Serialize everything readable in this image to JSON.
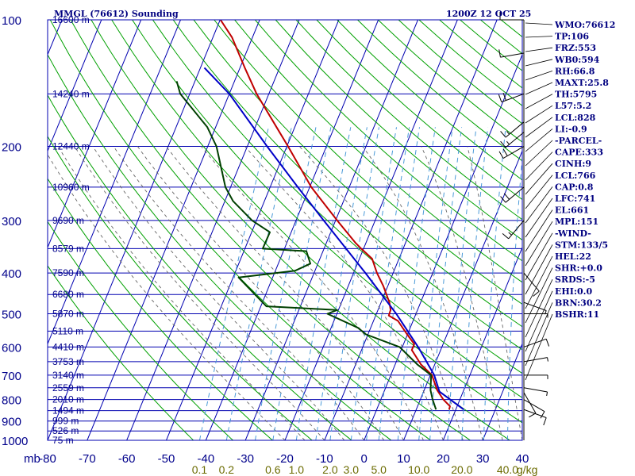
{
  "header": {
    "station": "MMGL (76612) Sounding",
    "time": "1200Z 12 OCT 25"
  },
  "colors": {
    "isobar": "#0000b0",
    "isotherm": "#0000b0",
    "dry_adiabat": "#00a000",
    "moist_adiabat": "#666666",
    "mixing_ratio": "#4a9ad8",
    "temperature": "#c00000",
    "dewpoint": "#004000",
    "parcel": "#0000c8",
    "wind": "#000000"
  },
  "axes": {
    "pressure_unit": "mb",
    "mixing_ratio_unit": "g/kg",
    "pressure_ticks": [
      "100",
      "200",
      "300",
      "400",
      "500",
      "600",
      "700",
      "800",
      "900",
      "1000"
    ],
    "temperature_ticks": [
      "-80",
      "-70",
      "-60",
      "-50",
      "-40",
      "-30",
      "-20",
      "-10",
      "0",
      "10",
      "20",
      "30",
      "40"
    ],
    "height_labels": [
      "16600 m",
      "14240 m",
      "12440 m",
      "10960 m",
      "9690 m",
      "8579 m",
      "7590 m",
      "6680 m",
      "5870 m",
      "5110 m",
      "4410 m",
      "3753 m",
      "3140 m",
      "2559 m",
      "2010 m",
      "1494 m",
      "999 m",
      "526 m",
      "75 m"
    ],
    "mixing_ratio_labels": [
      "0.1",
      "0.2",
      "0.6",
      "1.0",
      "2.0",
      "3.0",
      "5.0",
      "10.0",
      "20.0",
      "40.0"
    ]
  },
  "indices": [
    "WMO:76612",
    "TP:106",
    "FRZ:553",
    "WB0:594",
    "RH:66.8",
    "MAXT:25.8",
    "TH:5795",
    "L57:5.2",
    "LCL:828",
    "LI:-0.9",
    "-PARCEL-",
    "CAPE:333",
    "CINH:9",
    "LCL:766",
    "CAP:0.8",
    "LFC:741",
    "EL:661",
    "MPL:151",
    "-WIND-",
    "STM:133/5",
    "HEL:22",
    "SHR:+0.0",
    "SRDS:-5",
    "EHI:0.0",
    "BRN:30.2",
    "BSHR:11"
  ],
  "chart_data": {
    "type": "line",
    "title": "MMGL (76612) Sounding",
    "subtitle": "1200Z 12 OCT 25",
    "xlabel": "",
    "ylabel": "mb",
    "ylim": [
      1000,
      100
    ],
    "xlim": [
      -80,
      40
    ],
    "y_scale": "log",
    "series": [
      {
        "key": "temperature",
        "points": [
          {
            "p": 845,
            "t": 18.3
          },
          {
            "p": 830,
            "t": 18.2
          },
          {
            "p": 800,
            "t": 15.8
          },
          {
            "p": 760,
            "t": 13.3
          },
          {
            "p": 700,
            "t": 10.4
          },
          {
            "p": 660,
            "t": 6.5
          },
          {
            "p": 610,
            "t": 2.7
          },
          {
            "p": 590,
            "t": 2.7
          },
          {
            "p": 560,
            "t": -0.1
          },
          {
            "p": 520,
            "t": -3.8
          },
          {
            "p": 505,
            "t": -6.7
          },
          {
            "p": 490,
            "t": -6.8
          },
          {
            "p": 470,
            "t": -7.9
          },
          {
            "p": 430,
            "t": -11.1
          },
          {
            "p": 400,
            "t": -14.1
          },
          {
            "p": 370,
            "t": -16.8
          },
          {
            "p": 350,
            "t": -20.6
          },
          {
            "p": 340,
            "t": -22.5
          },
          {
            "p": 300,
            "t": -29.6
          },
          {
            "p": 250,
            "t": -39.6
          },
          {
            "p": 200,
            "t": -49.7
          },
          {
            "p": 180,
            "t": -54.6
          },
          {
            "p": 150,
            "t": -63.1
          },
          {
            "p": 130,
            "t": -68.8
          },
          {
            "p": 110,
            "t": -75.2
          },
          {
            "p": 100,
            "t": -79.9
          }
        ]
      },
      {
        "key": "dewpoint",
        "points": [
          {
            "p": 845,
            "t": 15.0
          },
          {
            "p": 800,
            "t": 13.1
          },
          {
            "p": 760,
            "t": 11.6
          },
          {
            "p": 700,
            "t": 10.2
          },
          {
            "p": 660,
            "t": 5.6
          },
          {
            "p": 600,
            "t": -0.7
          },
          {
            "p": 560,
            "t": -10.5
          },
          {
            "p": 540,
            "t": -13.2
          },
          {
            "p": 500,
            "t": -22.4
          },
          {
            "p": 490,
            "t": -20.3
          },
          {
            "p": 480,
            "t": -38.6
          },
          {
            "p": 410,
            "t": -48.6
          },
          {
            "p": 395,
            "t": -35.0
          },
          {
            "p": 380,
            "t": -31.9
          },
          {
            "p": 355,
            "t": -34.2
          },
          {
            "p": 350,
            "t": -45.5
          },
          {
            "p": 320,
            "t": -45.4
          },
          {
            "p": 300,
            "t": -51.1
          },
          {
            "p": 270,
            "t": -57.9
          },
          {
            "p": 250,
            "t": -61.3
          },
          {
            "p": 200,
            "t": -67.8
          },
          {
            "p": 180,
            "t": -72.1
          },
          {
            "p": 150,
            "t": -82.4
          },
          {
            "p": 140,
            "t": -84.6
          }
        ]
      },
      {
        "key": "parcel",
        "points": [
          {
            "p": 845,
            "t": 22.0
          },
          {
            "p": 766,
            "t": 14.0
          },
          {
            "p": 700,
            "t": 11.0
          },
          {
            "p": 600,
            "t": 4.0
          },
          {
            "p": 500,
            "t": -5.0
          },
          {
            "p": 400,
            "t": -17.0
          },
          {
            "p": 300,
            "t": -33.0
          },
          {
            "p": 250,
            "t": -43.0
          },
          {
            "p": 200,
            "t": -55.0
          },
          {
            "p": 150,
            "t": -70.0
          },
          {
            "p": 130,
            "t": -79.0
          }
        ]
      }
    ],
    "wind_barbs": [
      {
        "p": 845,
        "dir": 110,
        "kt": 10
      },
      {
        "p": 800,
        "dir": 120,
        "kt": 10
      },
      {
        "p": 770,
        "dir": 150,
        "kt": 10
      },
      {
        "p": 750,
        "dir": 100,
        "kt": 5
      },
      {
        "p": 700,
        "dir": 90,
        "kt": 5
      },
      {
        "p": 650,
        "dir": 80,
        "kt": 5
      },
      {
        "p": 600,
        "dir": 70,
        "kt": 10
      },
      {
        "p": 500,
        "dir": 90,
        "kt": 5
      },
      {
        "p": 470,
        "dir": 110,
        "kt": 5
      },
      {
        "p": 400,
        "dir": 140,
        "kt": 10
      },
      {
        "p": 300,
        "dir": 220,
        "kt": 15
      },
      {
        "p": 250,
        "dir": 230,
        "kt": 20
      },
      {
        "p": 200,
        "dir": 240,
        "kt": 20
      },
      {
        "p": 185,
        "dir": 230,
        "kt": 15
      },
      {
        "p": 175,
        "dir": 230,
        "kt": 15
      },
      {
        "p": 150,
        "dir": 250,
        "kt": 20
      },
      {
        "p": 120,
        "dir": 260,
        "kt": 10
      },
      {
        "p": 100,
        "dir": 270,
        "kt": 10
      }
    ]
  }
}
